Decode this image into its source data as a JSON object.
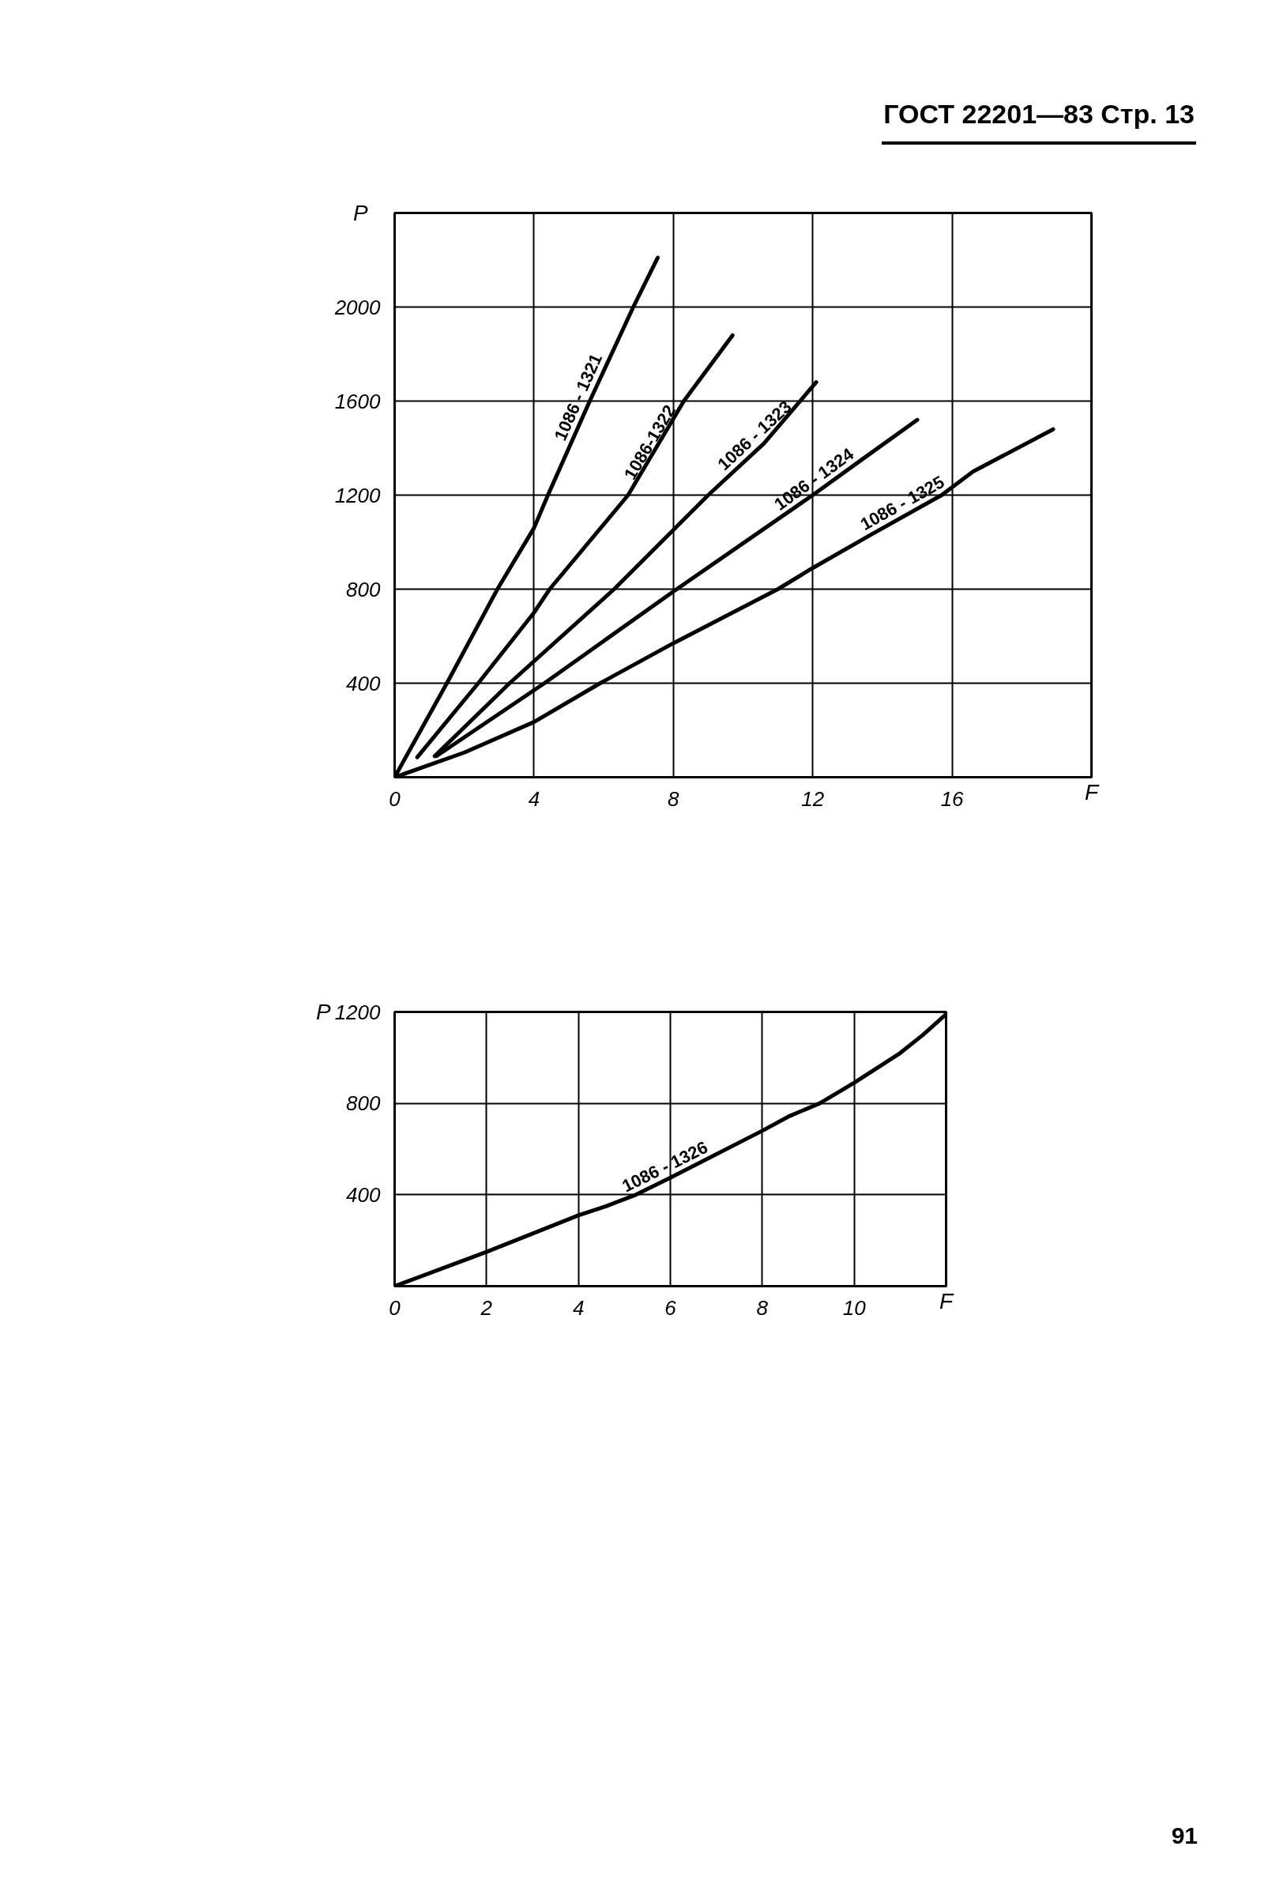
{
  "chart_data": [
    {
      "type": "line",
      "xlabel": "F",
      "ylabel": "P",
      "xlim": [
        0,
        20
      ],
      "ylim": [
        0,
        2400
      ],
      "xticks": [
        0,
        4,
        8,
        12,
        16
      ],
      "yticks": [
        400,
        800,
        1200,
        1600,
        2000
      ],
      "grid": true,
      "annotations": [
        "ГОСТ 22201—83 Стр. 13"
      ],
      "series": [
        {
          "name": "1086 - 1321",
          "color": "#000000",
          "x": [
            0,
            1.5,
            2.95,
            4.0,
            4.4,
            5.6,
            6.85,
            7.55
          ],
          "values": [
            0,
            400,
            800,
            1060,
            1200,
            1600,
            2000,
            2210
          ]
        },
        {
          "name": "1086-1322",
          "color": "#000000",
          "x": [
            0.65,
            2.4,
            4.0,
            4.45,
            6.7,
            8.3,
            9.7
          ],
          "values": [
            85,
            400,
            700,
            800,
            1200,
            1600,
            1880
          ]
        },
        {
          "name": "1086 - 1323",
          "color": "#000000",
          "x": [
            1.15,
            3.3,
            6.3,
            9.0,
            10.6,
            12.1
          ],
          "values": [
            90,
            400,
            800,
            1200,
            1420,
            1680
          ]
        },
        {
          "name": "1086 - 1324",
          "color": "#000000",
          "x": [
            1.2,
            4.3,
            8.0,
            12.0,
            13.4,
            15.0
          ],
          "values": [
            90,
            400,
            790,
            1200,
            1350,
            1520
          ]
        },
        {
          "name": "1086 - 1325",
          "color": "#000000",
          "x": [
            0,
            2,
            4,
            5.9,
            8.0,
            11.0,
            12.0,
            13.65,
            15.7,
            16.6,
            18.9
          ],
          "values": [
            0,
            105,
            235,
            400,
            570,
            800,
            890,
            1030,
            1200,
            1300,
            1480
          ]
        }
      ]
    },
    {
      "type": "line",
      "xlabel": "F",
      "ylabel": "P",
      "xlim": [
        0,
        12
      ],
      "ylim": [
        0,
        1200
      ],
      "xticks": [
        0,
        2,
        4,
        6,
        8,
        10
      ],
      "yticks": [
        400,
        800,
        1200
      ],
      "grid": true,
      "annotations": [
        "91"
      ],
      "series": [
        {
          "name": "1086 - 1326",
          "color": "#000000",
          "x": [
            0,
            2,
            4,
            4.6,
            5.25,
            6,
            8,
            8.6,
            9.25,
            10,
            11,
            11.5,
            12
          ],
          "values": [
            0,
            150,
            310,
            350,
            400,
            475,
            680,
            745,
            800,
            890,
            1020,
            1100,
            1190
          ]
        }
      ]
    }
  ]
}
